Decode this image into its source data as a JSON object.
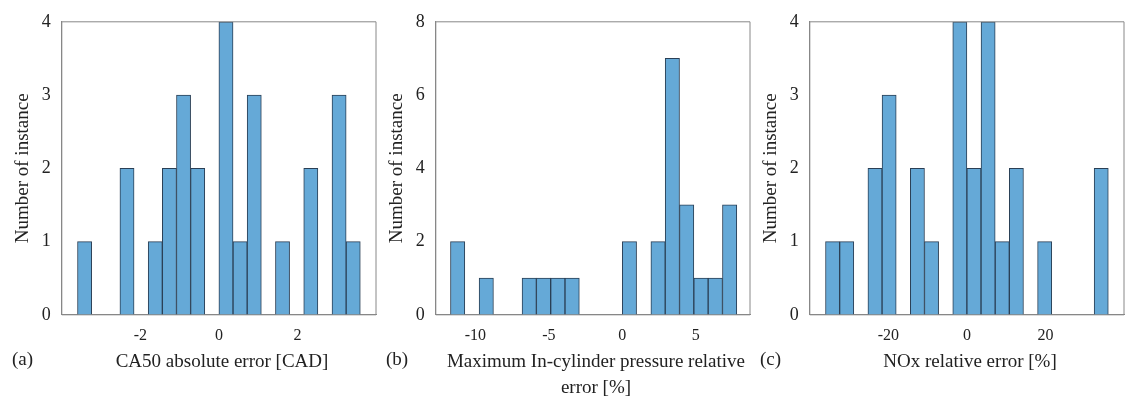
{
  "chart_data": [
    {
      "type": "histogram",
      "xlabel": "CA50 absolute error [CAD]",
      "ylabel": "Number of instance",
      "annotations": [
        "(a)"
      ],
      "color": "#65a9d7",
      "bins": [
        -3.6,
        -3.24,
        -2.88,
        -2.52,
        -2.16,
        -1.8,
        -1.44,
        -1.08,
        -0.72,
        -0.36,
        0,
        0.36,
        0.72,
        1.08,
        1.44,
        1.8,
        2.16,
        2.52,
        2.88,
        3.24,
        3.6
      ],
      "values": [
        1,
        0,
        0,
        2,
        0,
        1,
        2,
        3,
        2,
        0,
        4,
        1,
        3,
        0,
        1,
        0,
        2,
        0,
        3,
        1
      ],
      "xlim": [
        -4,
        4
      ],
      "xticks": [
        -2,
        0,
        2
      ],
      "ylim": [
        0,
        4
      ],
      "yticks": [
        0,
        1,
        2,
        3,
        4
      ]
    },
    {
      "type": "histogram",
      "xlabel": "Maximum In-cylinder pressure relative error [%]",
      "ylabel": "Number of instance",
      "annotations": [
        "(b)"
      ],
      "color": "#65a9d7",
      "bins": [
        -11.7,
        -10.725,
        -9.75,
        -8.775,
        -7.8,
        -6.825,
        -5.85,
        -4.875,
        -3.9,
        -2.925,
        -1.95,
        -0.975,
        0,
        0.975,
        1.95,
        2.925,
        3.9,
        4.875,
        5.85,
        6.825,
        7.8
      ],
      "values": [
        2,
        0,
        1,
        0,
        0,
        1,
        1,
        1,
        1,
        0,
        0,
        0,
        2,
        0,
        2,
        7,
        3,
        1,
        1,
        3
      ],
      "xlim": [
        -12.7,
        8.7
      ],
      "xticks": [
        -10,
        -5,
        0,
        5
      ],
      "ylim": [
        0,
        8
      ],
      "yticks": [
        0,
        2,
        4,
        6,
        8
      ]
    },
    {
      "type": "histogram",
      "xlabel": "NOx relative error [%]",
      "ylabel": "Number of instance",
      "annotations": [
        "(c)"
      ],
      "color": "#65a9d7",
      "bins": [
        -36,
        -32.4,
        -28.8,
        -25.2,
        -21.6,
        -18,
        -14.4,
        -10.8,
        -7.2,
        -3.6,
        0,
        3.6,
        7.2,
        10.8,
        14.4,
        18,
        21.6,
        25.2,
        28.8,
        32.4,
        36
      ],
      "values": [
        1,
        1,
        0,
        2,
        3,
        0,
        2,
        1,
        0,
        4,
        2,
        4,
        1,
        2,
        0,
        1,
        0,
        0,
        0,
        2
      ],
      "xlim": [
        -40,
        40
      ],
      "xticks": [
        -20,
        0,
        20
      ],
      "ylim": [
        0,
        4
      ],
      "yticks": [
        0,
        1,
        2,
        3,
        4
      ]
    }
  ]
}
